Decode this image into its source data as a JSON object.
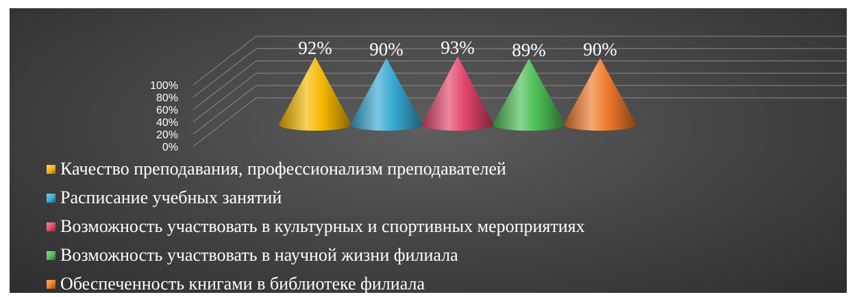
{
  "chart_data": {
    "type": "bar",
    "bar_shape": "cone",
    "three_d": true,
    "grid": true,
    "legend_position": "bottom",
    "ylim": [
      0,
      1
    ],
    "y_tick_labels": [
      "0%",
      "20%",
      "40%",
      "60%",
      "80%",
      "100%"
    ],
    "series": [
      {
        "name": "Качество преподавания, профессионализм преподавателей",
        "value": 0.92,
        "label": "92%",
        "color": "#f5b800"
      },
      {
        "name": "Расписание учебных занятий",
        "value": 0.9,
        "label": "90%",
        "color": "#36a9d2"
      },
      {
        "name": "Возможность участвовать в культурных и спортивных мероприятиях",
        "value": 0.93,
        "label": "93%",
        "color": "#e2456a"
      },
      {
        "name": "Возможность участвовать в научной жизни филиала",
        "value": 0.89,
        "label": "89%",
        "color": "#4cbf55"
      },
      {
        "name": "Обеспеченность книгами в библиотеке филиала",
        "value": 0.9,
        "label": "90%",
        "color": "#f07a2a"
      }
    ]
  }
}
